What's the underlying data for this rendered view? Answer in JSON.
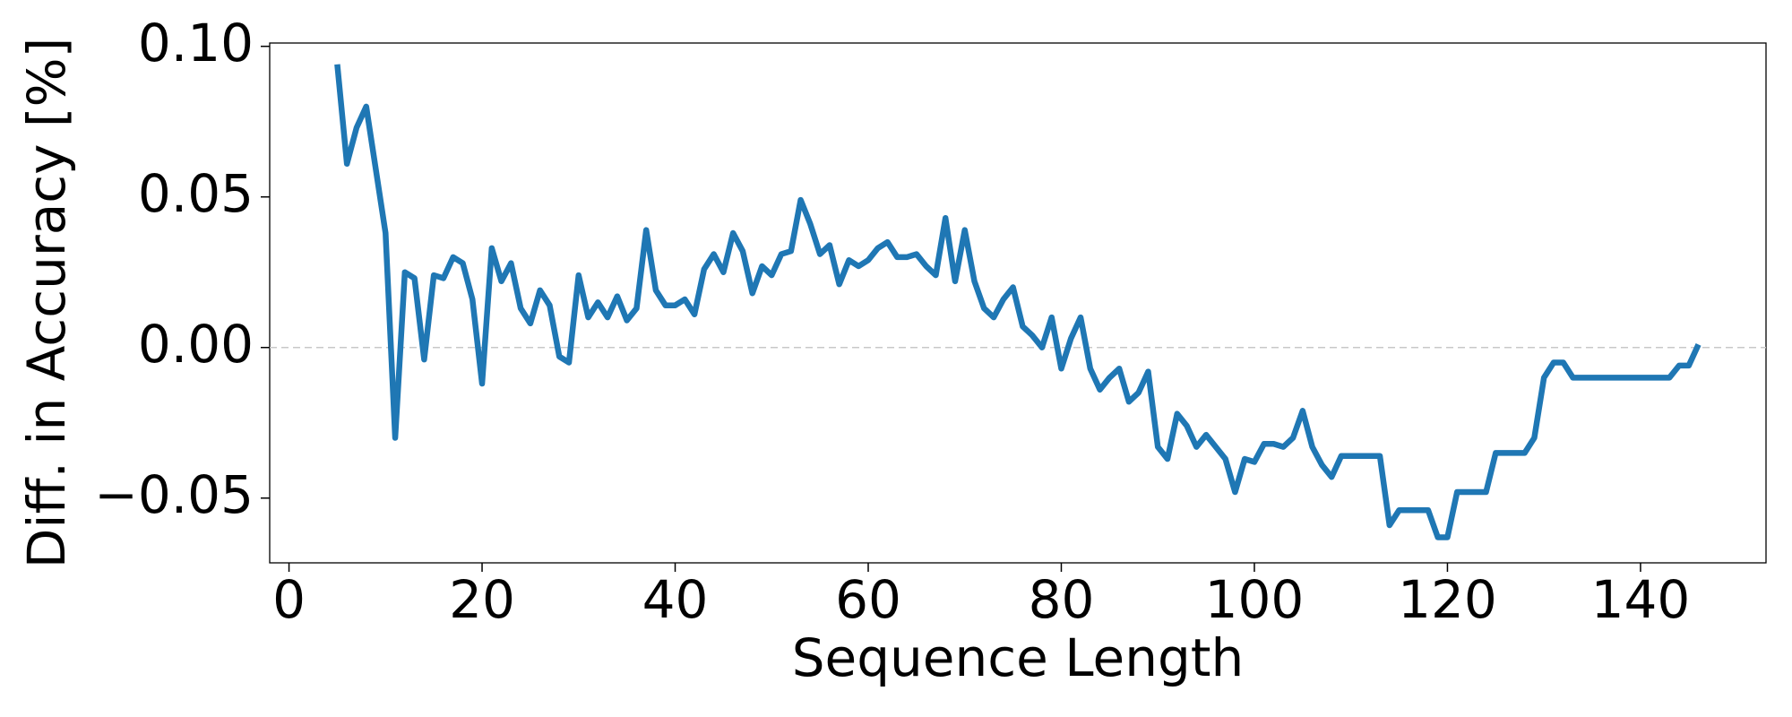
{
  "chart_data": {
    "type": "line",
    "xlabel": "Sequence Length",
    "ylabel": "Diff. in Accuracy [%]",
    "color": "#1f77b4",
    "xlim": [
      -2,
      153
    ],
    "ylim": [
      -0.0715,
      0.1011
    ],
    "xticks": [
      0,
      20,
      40,
      60,
      80,
      100,
      120,
      140
    ],
    "yticks": [
      {
        "value": -0.05,
        "label": "−0.05"
      },
      {
        "value": 0,
        "label": "0.00"
      },
      {
        "value": 0.05,
        "label": "0.05"
      },
      {
        "value": 0.1,
        "label": "0.10"
      }
    ],
    "reference_line": 0,
    "x": [
      5,
      6,
      7,
      8,
      9,
      10,
      11,
      12,
      13,
      14,
      15,
      16,
      17,
      18,
      19,
      20,
      21,
      22,
      23,
      24,
      25,
      26,
      27,
      28,
      29,
      30,
      31,
      32,
      33,
      34,
      35,
      36,
      37,
      38,
      39,
      40,
      41,
      42,
      43,
      44,
      45,
      46,
      47,
      48,
      49,
      50,
      51,
      52,
      53,
      54,
      55,
      56,
      57,
      58,
      59,
      60,
      61,
      62,
      63,
      64,
      65,
      66,
      67,
      68,
      69,
      70,
      71,
      72,
      73,
      74,
      75,
      76,
      77,
      78,
      79,
      80,
      81,
      82,
      83,
      84,
      85,
      86,
      87,
      88,
      89,
      90,
      91,
      92,
      93,
      94,
      95,
      96,
      97,
      98,
      99,
      100,
      101,
      102,
      103,
      104,
      105,
      106,
      107,
      108,
      109,
      110,
      111,
      112,
      113,
      114,
      115,
      116,
      117,
      118,
      119,
      120,
      121,
      122,
      123,
      124,
      125,
      126,
      127,
      128,
      129,
      130,
      131,
      132,
      133,
      134,
      135,
      136,
      137,
      138,
      139,
      140,
      141,
      142,
      143,
      144,
      145,
      146
    ],
    "values": [
      0.094,
      0.061,
      0.073,
      0.08,
      0.059,
      0.038,
      -0.03,
      0.025,
      0.023,
      -0.004,
      0.024,
      0.023,
      0.03,
      0.028,
      0.016,
      -0.012,
      0.033,
      0.022,
      0.028,
      0.013,
      0.008,
      0.019,
      0.014,
      -0.003,
      -0.005,
      0.024,
      0.01,
      0.015,
      0.01,
      0.017,
      0.009,
      0.013,
      0.039,
      0.019,
      0.014,
      0.014,
      0.016,
      0.011,
      0.026,
      0.031,
      0.025,
      0.038,
      0.032,
      0.018,
      0.027,
      0.024,
      0.031,
      0.032,
      0.049,
      0.041,
      0.031,
      0.034,
      0.021,
      0.029,
      0.027,
      0.029,
      0.033,
      0.035,
      0.03,
      0.03,
      0.031,
      0.027,
      0.024,
      0.043,
      0.022,
      0.039,
      0.022,
      0.013,
      0.01,
      0.016,
      0.02,
      0.007,
      0.004,
      0.0,
      0.01,
      -0.007,
      0.003,
      0.01,
      -0.007,
      -0.014,
      -0.01,
      -0.007,
      -0.018,
      -0.015,
      -0.008,
      -0.033,
      -0.037,
      -0.022,
      -0.026,
      -0.033,
      -0.029,
      -0.033,
      -0.037,
      -0.048,
      -0.037,
      -0.038,
      -0.032,
      -0.032,
      -0.033,
      -0.03,
      -0.021,
      -0.033,
      -0.039,
      -0.043,
      -0.036,
      -0.036,
      -0.036,
      -0.036,
      -0.036,
      -0.059,
      -0.054,
      -0.054,
      -0.054,
      -0.054,
      -0.063,
      -0.063,
      -0.048,
      -0.048,
      -0.048,
      -0.048,
      -0.035,
      -0.035,
      -0.035,
      -0.035,
      -0.03,
      -0.01,
      -0.005,
      -0.005,
      -0.01,
      -0.01,
      -0.01,
      -0.01,
      -0.01,
      -0.01,
      -0.01,
      -0.01,
      -0.01,
      -0.01,
      -0.01,
      -0.006,
      -0.006,
      0.001
    ]
  }
}
